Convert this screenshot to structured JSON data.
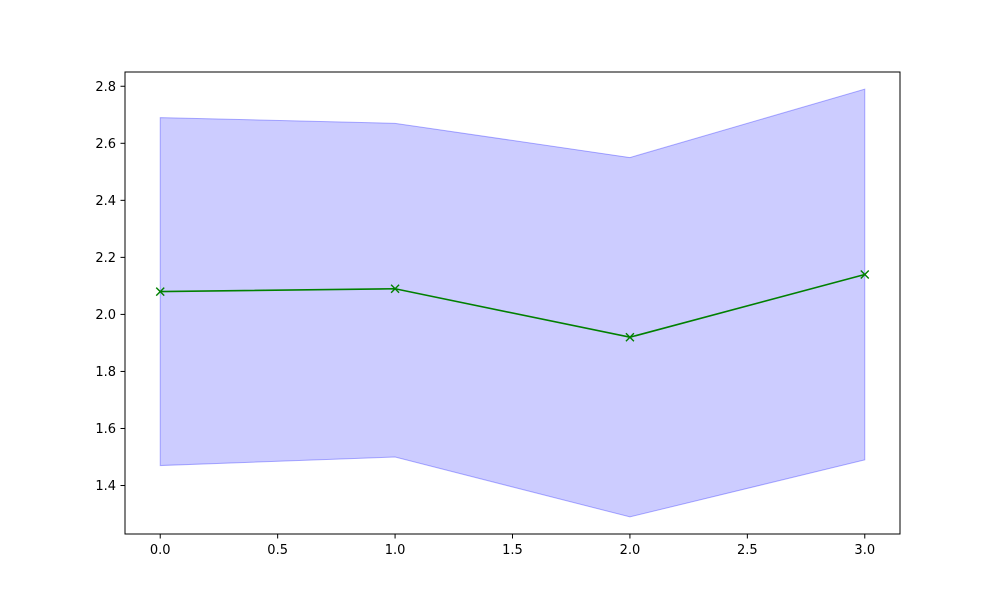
{
  "chart_data": {
    "type": "line",
    "title": "",
    "xlabel": "",
    "ylabel": "",
    "x": [
      0,
      1,
      2,
      3
    ],
    "series": [
      {
        "values": [
          2.08,
          2.09,
          1.92,
          2.14
        ],
        "color": "#008000",
        "marker": "x"
      }
    ],
    "band": {
      "lower": [
        1.47,
        1.5,
        1.29,
        1.49
      ],
      "upper": [
        2.69,
        2.67,
        2.55,
        2.79
      ],
      "color": "#0000ff",
      "fill_opacity": 0.2
    },
    "xlim": [
      -0.15,
      3.15
    ],
    "ylim": [
      1.23,
      2.85
    ],
    "xticks": [
      {
        "value": 0.0,
        "label": "0.0"
      },
      {
        "value": 0.5,
        "label": "0.5"
      },
      {
        "value": 1.0,
        "label": "1.0"
      },
      {
        "value": 1.5,
        "label": "1.5"
      },
      {
        "value": 2.0,
        "label": "2.0"
      },
      {
        "value": 2.5,
        "label": "2.5"
      },
      {
        "value": 3.0,
        "label": "3.0"
      }
    ],
    "yticks": [
      {
        "value": 1.4,
        "label": "1.4"
      },
      {
        "value": 1.6,
        "label": "1.6"
      },
      {
        "value": 1.8,
        "label": "1.8"
      },
      {
        "value": 2.0,
        "label": "2.0"
      },
      {
        "value": 2.2,
        "label": "2.2"
      },
      {
        "value": 2.4,
        "label": "2.4"
      },
      {
        "value": 2.6,
        "label": "2.6"
      },
      {
        "value": 2.8,
        "label": "2.8"
      }
    ],
    "grid": false,
    "legend": "none"
  }
}
